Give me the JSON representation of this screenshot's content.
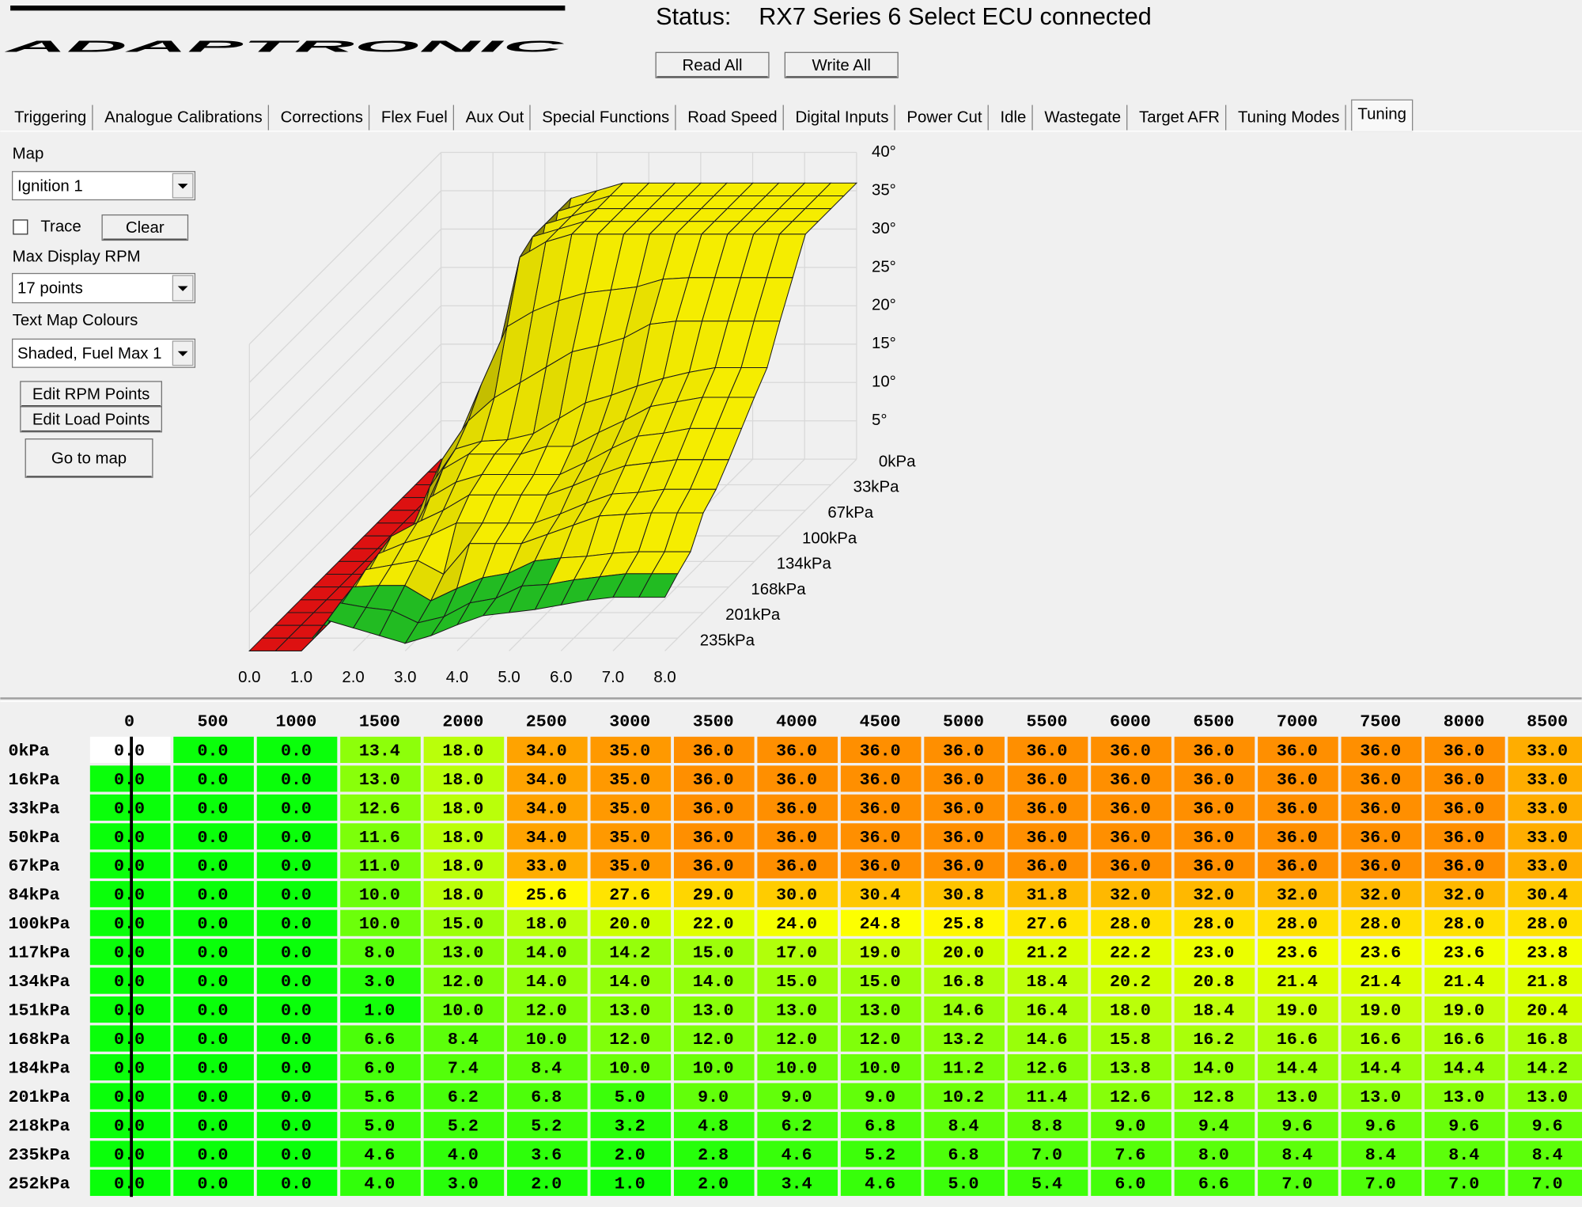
{
  "header": {
    "logo": "ADAPTRONIC",
    "status_label": "Status:",
    "status": "RX7 Series 6 Select ECU connected",
    "buttons": [
      "Read All",
      "Write All"
    ]
  },
  "tabs": [
    "Triggering",
    "Analogue Calibrations",
    "Corrections",
    "Flex Fuel",
    "Aux Out",
    "Special Functions",
    "Road Speed",
    "Digital Inputs",
    "Power Cut",
    "Idle",
    "Wastegate",
    "Target AFR",
    "Tuning Modes",
    "Tuning"
  ],
  "panel": {
    "map_label": "Map",
    "map_select": "Ignition 1",
    "trace": "Trace",
    "clear": "Clear",
    "rpm_label": "Max Display RPM",
    "rpm_select": "17 points",
    "colours_label": "Text Map Colours",
    "colours_select": "Shaded, Fuel Max 1",
    "buttons": [
      "Edit RPM Points",
      "Edit Load Points",
      "Go to map"
    ]
  },
  "surface": {
    "zticks": [
      {
        "value": 40,
        "label": "40°"
      },
      {
        "value": 35,
        "label": "35°"
      },
      {
        "value": 30,
        "label": "30°"
      },
      {
        "value": 25,
        "label": "25°"
      },
      {
        "value": 20,
        "label": "20°"
      },
      {
        "value": 15,
        "label": "15°"
      },
      {
        "value": 10,
        "label": "10°"
      },
      {
        "value": 5,
        "label": "5°"
      }
    ],
    "xticks": [
      {
        "value": 0,
        "label": "0.0"
      },
      {
        "value": 1,
        "label": "1.0"
      },
      {
        "value": 2,
        "label": "2.0"
      },
      {
        "value": 3,
        "label": "3.0"
      },
      {
        "value": 4,
        "label": "4.0"
      },
      {
        "value": 5,
        "label": "5.0"
      },
      {
        "value": 6,
        "label": "6.0"
      },
      {
        "value": 7,
        "label": "7.0"
      },
      {
        "value": 8,
        "label": "8.0"
      }
    ],
    "load_labels": [
      "0kPa",
      "33kPa",
      "67kPa",
      "100kPa",
      "134kPa",
      "168kPa",
      "201kPa",
      "235kPa"
    ]
  },
  "table": {
    "columns": [
      "0",
      "500",
      "1000",
      "1500",
      "2000",
      "2500",
      "3000",
      "3500",
      "4000",
      "4500",
      "5000",
      "5500",
      "6000",
      "6500",
      "7000",
      "7500",
      "8000",
      "8500"
    ],
    "rows": [
      {
        "label": "0kPa",
        "cells": [
          "0.0",
          "0.0",
          "0.0",
          "13.4",
          "18.0",
          "34.0",
          "35.0",
          "36.0",
          "36.0",
          "36.0",
          "36.0",
          "36.0",
          "36.0",
          "36.0",
          "36.0",
          "36.0",
          "36.0",
          "33.0"
        ]
      },
      {
        "label": "16kPa",
        "cells": [
          "0.0",
          "0.0",
          "0.0",
          "13.0",
          "18.0",
          "34.0",
          "35.0",
          "36.0",
          "36.0",
          "36.0",
          "36.0",
          "36.0",
          "36.0",
          "36.0",
          "36.0",
          "36.0",
          "36.0",
          "33.0"
        ]
      },
      {
        "label": "33kPa",
        "cells": [
          "0.0",
          "0.0",
          "0.0",
          "12.6",
          "18.0",
          "34.0",
          "35.0",
          "36.0",
          "36.0",
          "36.0",
          "36.0",
          "36.0",
          "36.0",
          "36.0",
          "36.0",
          "36.0",
          "36.0",
          "33.0"
        ]
      },
      {
        "label": "50kPa",
        "cells": [
          "0.0",
          "0.0",
          "0.0",
          "11.6",
          "18.0",
          "34.0",
          "35.0",
          "36.0",
          "36.0",
          "36.0",
          "36.0",
          "36.0",
          "36.0",
          "36.0",
          "36.0",
          "36.0",
          "36.0",
          "33.0"
        ]
      },
      {
        "label": "67kPa",
        "cells": [
          "0.0",
          "0.0",
          "0.0",
          "11.0",
          "18.0",
          "33.0",
          "35.0",
          "36.0",
          "36.0",
          "36.0",
          "36.0",
          "36.0",
          "36.0",
          "36.0",
          "36.0",
          "36.0",
          "36.0",
          "33.0"
        ]
      },
      {
        "label": "84kPa",
        "cells": [
          "0.0",
          "0.0",
          "0.0",
          "10.0",
          "18.0",
          "25.6",
          "27.6",
          "29.0",
          "30.0",
          "30.4",
          "30.8",
          "31.8",
          "32.0",
          "32.0",
          "32.0",
          "32.0",
          "32.0",
          "30.4"
        ]
      },
      {
        "label": "100kPa",
        "cells": [
          "0.0",
          "0.0",
          "0.0",
          "10.0",
          "15.0",
          "18.0",
          "20.0",
          "22.0",
          "24.0",
          "24.8",
          "25.8",
          "27.6",
          "28.0",
          "28.0",
          "28.0",
          "28.0",
          "28.0",
          "28.0"
        ]
      },
      {
        "label": "117kPa",
        "cells": [
          "0.0",
          "0.0",
          "0.0",
          "8.0",
          "13.0",
          "14.0",
          "14.2",
          "15.0",
          "17.0",
          "19.0",
          "20.0",
          "21.2",
          "22.2",
          "23.0",
          "23.6",
          "23.6",
          "23.6",
          "23.8"
        ]
      },
      {
        "label": "134kPa",
        "cells": [
          "0.0",
          "0.0",
          "0.0",
          "3.0",
          "12.0",
          "14.0",
          "14.0",
          "14.0",
          "15.0",
          "15.0",
          "16.8",
          "18.4",
          "20.2",
          "20.8",
          "21.4",
          "21.4",
          "21.4",
          "21.8"
        ]
      },
      {
        "label": "151kPa",
        "cells": [
          "0.0",
          "0.0",
          "0.0",
          "1.0",
          "10.0",
          "12.0",
          "13.0",
          "13.0",
          "13.0",
          "13.0",
          "14.6",
          "16.4",
          "18.0",
          "18.4",
          "19.0",
          "19.0",
          "19.0",
          "20.4"
        ]
      },
      {
        "label": "168kPa",
        "cells": [
          "0.0",
          "0.0",
          "0.0",
          "6.6",
          "8.4",
          "10.0",
          "12.0",
          "12.0",
          "12.0",
          "12.0",
          "13.2",
          "14.6",
          "15.8",
          "16.2",
          "16.6",
          "16.6",
          "16.6",
          "16.8"
        ]
      },
      {
        "label": "184kPa",
        "cells": [
          "0.0",
          "0.0",
          "0.0",
          "6.0",
          "7.4",
          "8.4",
          "10.0",
          "10.0",
          "10.0",
          "10.0",
          "11.2",
          "12.6",
          "13.8",
          "14.0",
          "14.4",
          "14.4",
          "14.4",
          "14.2"
        ]
      },
      {
        "label": "201kPa",
        "cells": [
          "0.0",
          "0.0",
          "0.0",
          "5.6",
          "6.2",
          "6.8",
          "5.0",
          "9.0",
          "9.0",
          "9.0",
          "10.2",
          "11.4",
          "12.6",
          "12.8",
          "13.0",
          "13.0",
          "13.0",
          "13.0"
        ]
      },
      {
        "label": "218kPa",
        "cells": [
          "0.0",
          "0.0",
          "0.0",
          "5.0",
          "5.2",
          "5.2",
          "3.2",
          "4.8",
          "6.2",
          "6.8",
          "8.4",
          "8.8",
          "9.0",
          "9.4",
          "9.6",
          "9.6",
          "9.6",
          "9.6"
        ]
      },
      {
        "label": "235kPa",
        "cells": [
          "0.0",
          "0.0",
          "0.0",
          "4.6",
          "4.0",
          "3.6",
          "2.0",
          "2.8",
          "4.6",
          "5.2",
          "6.8",
          "7.0",
          "7.6",
          "8.0",
          "8.4",
          "8.4",
          "8.4",
          "8.4"
        ]
      },
      {
        "label": "252kPa",
        "cells": [
          "0.0",
          "0.0",
          "0.0",
          "4.0",
          "3.0",
          "2.0",
          "1.0",
          "2.0",
          "3.4",
          "4.6",
          "5.0",
          "5.4",
          "6.0",
          "6.6",
          "7.0",
          "7.0",
          "7.0",
          "7.0"
        ]
      }
    ]
  }
}
